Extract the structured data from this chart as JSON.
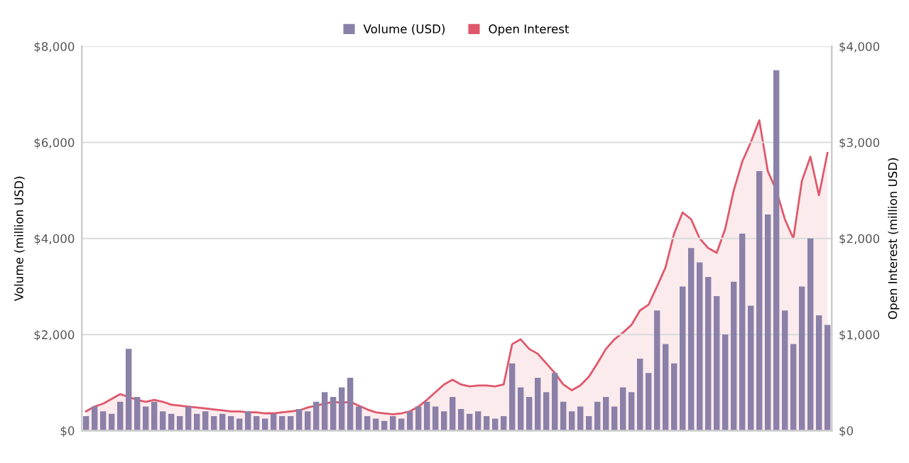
{
  "chart_data": {
    "type": "bar",
    "ylabel": "Volume (million USD)",
    "y2label": "Open Interest (million USD)",
    "legend": "top",
    "grid": "y",
    "categories": [
      null,
      null,
      null,
      null,
      null,
      null,
      null,
      null,
      null,
      null,
      null,
      null,
      null,
      null,
      null,
      null,
      null,
      null,
      null,
      null,
      null,
      null,
      null,
      null,
      null,
      null,
      null,
      null,
      null,
      null,
      null,
      null,
      null,
      null,
      null,
      null,
      null,
      null,
      null,
      null,
      null,
      null,
      null,
      null,
      null,
      null,
      null,
      null,
      null,
      null,
      null,
      null,
      null,
      null,
      null,
      null,
      null,
      null,
      null,
      null,
      null,
      null,
      null,
      null,
      null,
      null,
      null,
      null,
      null,
      null,
      null,
      null,
      null,
      null,
      null,
      null,
      null,
      null,
      null,
      null,
      null,
      null,
      null,
      null,
      null,
      null,
      null,
      null
    ],
    "ylim": [
      0,
      8000
    ],
    "yticks": [
      {
        "value": 0,
        "label": "$0"
      },
      {
        "value": 2000,
        "label": "$2,000"
      },
      {
        "value": 4000,
        "label": "$4,000"
      },
      {
        "value": 6000,
        "label": "$6,000"
      },
      {
        "value": 8000,
        "label": "$8,000"
      }
    ],
    "y2lim": [
      0,
      4000
    ],
    "y2ticks": [
      {
        "value": 0,
        "label": "$0"
      },
      {
        "value": 1000,
        "label": "$1,000"
      },
      {
        "value": 2000,
        "label": "$2,000"
      },
      {
        "value": 3000,
        "label": "$3,000"
      },
      {
        "value": 4000,
        "label": "$4,000"
      }
    ],
    "series": [
      {
        "name": "Volume (USD)",
        "color": "#8a80a8",
        "values": [
          300,
          500,
          400,
          350,
          600,
          1700,
          700,
          500,
          600,
          400,
          350,
          300,
          500,
          350,
          400,
          300,
          350,
          300,
          250,
          400,
          300,
          250,
          350,
          300,
          300,
          450,
          400,
          600,
          800,
          700,
          900,
          1100,
          500,
          300,
          250,
          200,
          300,
          250,
          400,
          500,
          600,
          500,
          400,
          700,
          450,
          350,
          400,
          300,
          250,
          300,
          1400,
          900,
          700,
          1100,
          800,
          1200,
          600,
          400,
          500,
          300,
          600,
          700,
          500,
          900,
          800,
          1500,
          1200,
          2500,
          1800,
          1400,
          3000,
          3800,
          3500,
          3200,
          2800,
          2000,
          3100,
          4100,
          2600,
          5400,
          4500,
          7500,
          2500,
          1800,
          3000,
          4000,
          2400,
          2200
        ]
      },
      {
        "name": "Open Interest",
        "type": "area",
        "axis": "y2",
        "color": "#e0576b",
        "values": [
          200,
          250,
          280,
          330,
          380,
          350,
          320,
          300,
          320,
          300,
          270,
          260,
          250,
          240,
          230,
          220,
          210,
          200,
          200,
          190,
          190,
          180,
          180,
          190,
          200,
          210,
          240,
          260,
          280,
          300,
          290,
          300,
          260,
          220,
          190,
          180,
          170,
          180,
          200,
          250,
          320,
          400,
          480,
          530,
          480,
          460,
          470,
          470,
          460,
          480,
          900,
          950,
          850,
          800,
          700,
          600,
          480,
          420,
          470,
          560,
          700,
          850,
          950,
          1020,
          1100,
          1250,
          1310,
          1500,
          1700,
          2050,
          2270,
          2200,
          2000,
          1900,
          1850,
          2100,
          2500,
          2800,
          3000,
          3230,
          2700,
          2500,
          2200,
          2000,
          2600,
          2850,
          2450,
          2890
        ]
      }
    ]
  }
}
